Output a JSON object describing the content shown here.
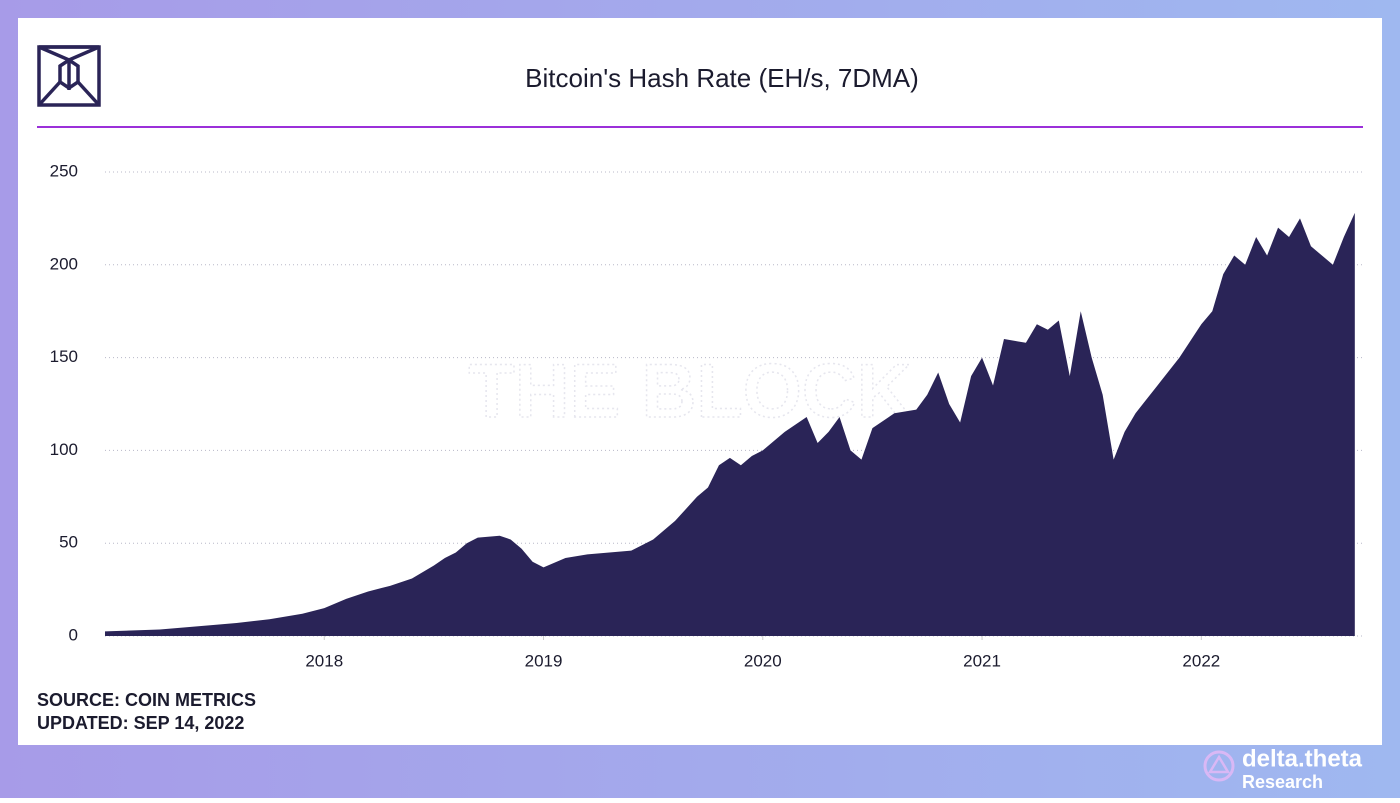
{
  "chart_data": {
    "type": "area",
    "title": "Bitcoin's Hash Rate (EH/s, 7DMA)",
    "watermark": "THE BLOCK",
    "source": "SOURCE: COIN METRICS",
    "updated": "UPDATED: SEP 14, 2022",
    "brand": "delta.theta",
    "brand_sub": "Research",
    "color": "#2a2457",
    "grid": true,
    "xlim": [
      2017.0,
      2022.71
    ],
    "xticks": [
      2018,
      2019,
      2020,
      2021,
      2022
    ],
    "ylim": [
      0,
      250
    ],
    "yticks": [
      0,
      50,
      100,
      150,
      200,
      250
    ],
    "x": [
      2017.0,
      2017.25,
      2017.5,
      2017.6,
      2017.75,
      2017.9,
      2018.0,
      2018.1,
      2018.2,
      2018.3,
      2018.4,
      2018.5,
      2018.55,
      2018.6,
      2018.65,
      2018.7,
      2018.8,
      2018.85,
      2018.9,
      2018.95,
      2019.0,
      2019.1,
      2019.2,
      2019.3,
      2019.4,
      2019.5,
      2019.6,
      2019.7,
      2019.75,
      2019.8,
      2019.85,
      2019.9,
      2019.95,
      2020.0,
      2020.1,
      2020.2,
      2020.25,
      2020.3,
      2020.35,
      2020.4,
      2020.45,
      2020.5,
      2020.6,
      2020.7,
      2020.75,
      2020.8,
      2020.85,
      2020.9,
      2020.95,
      2021.0,
      2021.05,
      2021.1,
      2021.2,
      2021.25,
      2021.3,
      2021.35,
      2021.4,
      2021.45,
      2021.5,
      2021.55,
      2021.6,
      2021.65,
      2021.7,
      2021.8,
      2021.9,
      2022.0,
      2022.05,
      2022.1,
      2022.15,
      2022.2,
      2022.25,
      2022.3,
      2022.35,
      2022.4,
      2022.45,
      2022.5,
      2022.55,
      2022.6,
      2022.65,
      2022.7
    ],
    "values": [
      2.5,
      3.5,
      6,
      7,
      9,
      12,
      15,
      20,
      24,
      27,
      31,
      38,
      42,
      45,
      50,
      53,
      54,
      52,
      47,
      40,
      37,
      42,
      44,
      45,
      46,
      52,
      62,
      75,
      80,
      92,
      96,
      92,
      97,
      100,
      110,
      118,
      104,
      110,
      118,
      100,
      95,
      112,
      120,
      122,
      130,
      142,
      125,
      115,
      140,
      150,
      135,
      160,
      158,
      168,
      165,
      170,
      140,
      175,
      150,
      130,
      95,
      110,
      120,
      135,
      150,
      168,
      175,
      195,
      205,
      200,
      215,
      205,
      220,
      215,
      225,
      210,
      205,
      200,
      215,
      228
    ]
  }
}
